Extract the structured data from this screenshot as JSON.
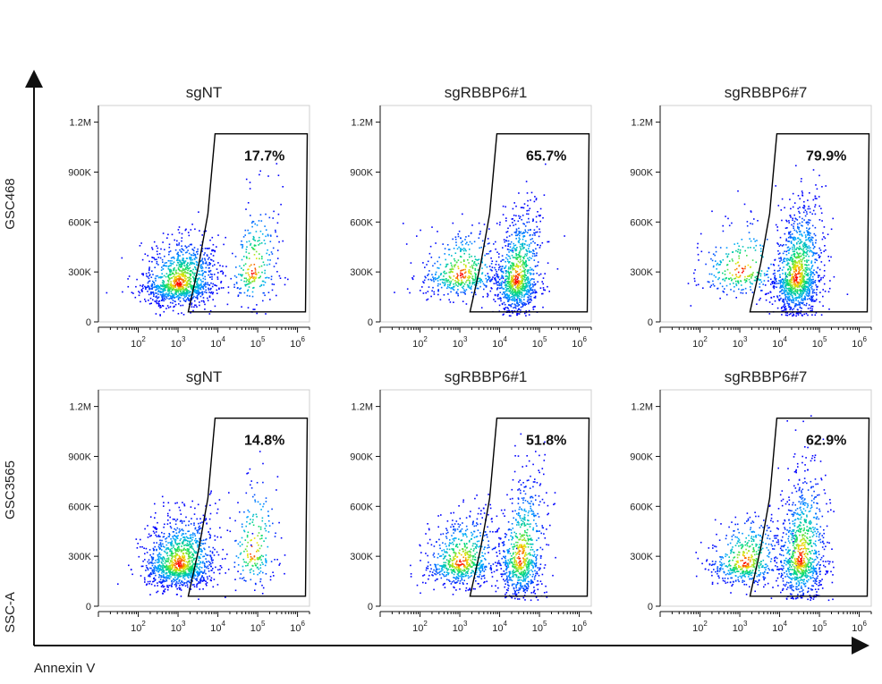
{
  "figure": {
    "row_labels": [
      "GSC468",
      "GSC3565"
    ],
    "y_axis_title": "SSC-A",
    "x_axis_title": "Annexin V"
  },
  "chart_data": [
    {
      "type": "scatter",
      "title": "sgNT",
      "row": "GSC468",
      "gate_percent": "17.7%",
      "apoptotic_fraction": 0.177,
      "xlabel": "Annexin V",
      "ylabel": "SSC-A",
      "xscale": "log",
      "xlim": [
        10,
        2000000
      ],
      "ylim": [
        0,
        1300000
      ],
      "x_ticks": [
        100,
        1000,
        10000,
        100000,
        1000000
      ],
      "x_tick_labels": [
        "10^2",
        "10^3",
        "10^4",
        "10^5",
        "10^6"
      ],
      "y_ticks": [
        0,
        300000,
        600000,
        900000,
        1200000
      ],
      "y_tick_labels": [
        "0",
        "300K",
        "600K",
        "900K",
        "1.2M"
      ],
      "populations": [
        {
          "x_center_log10": 3.0,
          "y_center": 230000,
          "x_spread_log10": 0.45,
          "y_spread": 110000,
          "weight": 0.82
        },
        {
          "x_center_log10": 4.85,
          "y_center": 300000,
          "x_spread_log10": 0.3,
          "y_spread": 180000,
          "weight": 0.18
        }
      ]
    },
    {
      "type": "scatter",
      "title": "sgRBBP6#1",
      "row": "GSC468",
      "gate_percent": "65.7%",
      "apoptotic_fraction": 0.657,
      "xlabel": "Annexin V",
      "ylabel": "SSC-A",
      "xscale": "log",
      "xlim": [
        10,
        2000000
      ],
      "ylim": [
        0,
        1300000
      ],
      "x_ticks": [
        100,
        1000,
        10000,
        100000,
        1000000
      ],
      "x_tick_labels": [
        "10^2",
        "10^3",
        "10^4",
        "10^5",
        "10^6"
      ],
      "y_ticks": [
        0,
        300000,
        600000,
        900000,
        1200000
      ],
      "y_tick_labels": [
        "0",
        "300K",
        "600K",
        "900K",
        "1.2M"
      ],
      "populations": [
        {
          "x_center_log10": 3.0,
          "y_center": 280000,
          "x_spread_log10": 0.5,
          "y_spread": 120000,
          "weight": 0.34
        },
        {
          "x_center_log10": 4.4,
          "y_center": 250000,
          "x_spread_log10": 0.28,
          "y_spread": 170000,
          "weight": 0.66
        }
      ]
    },
    {
      "type": "scatter",
      "title": "sgRBBP6#7",
      "row": "GSC468",
      "gate_percent": "79.9%",
      "apoptotic_fraction": 0.799,
      "xlabel": "Annexin V",
      "ylabel": "SSC-A",
      "xscale": "log",
      "xlim": [
        10,
        2000000
      ],
      "ylim": [
        0,
        1300000
      ],
      "x_ticks": [
        100,
        1000,
        10000,
        100000,
        1000000
      ],
      "x_tick_labels": [
        "10^2",
        "10^3",
        "10^4",
        "10^5",
        "10^6"
      ],
      "y_ticks": [
        0,
        300000,
        600000,
        900000,
        1200000
      ],
      "y_tick_labels": [
        "0",
        "300K",
        "600K",
        "900K",
        "1.2M"
      ],
      "populations": [
        {
          "x_center_log10": 3.0,
          "y_center": 300000,
          "x_spread_log10": 0.55,
          "y_spread": 130000,
          "weight": 0.2
        },
        {
          "x_center_log10": 4.4,
          "y_center": 260000,
          "x_spread_log10": 0.3,
          "y_spread": 180000,
          "weight": 0.8
        }
      ]
    },
    {
      "type": "scatter",
      "title": "sgNT",
      "row": "GSC3565",
      "gate_percent": "14.8%",
      "apoptotic_fraction": 0.148,
      "xlabel": "Annexin V",
      "ylabel": "SSC-A",
      "xscale": "log",
      "xlim": [
        10,
        2000000
      ],
      "ylim": [
        0,
        1300000
      ],
      "x_ticks": [
        100,
        1000,
        10000,
        100000,
        1000000
      ],
      "x_tick_labels": [
        "10^2",
        "10^3",
        "10^4",
        "10^5",
        "10^6"
      ],
      "y_ticks": [
        0,
        300000,
        600000,
        900000,
        1200000
      ],
      "y_tick_labels": [
        "0",
        "300K",
        "600K",
        "900K",
        "1.2M"
      ],
      "populations": [
        {
          "x_center_log10": 3.0,
          "y_center": 250000,
          "x_spread_log10": 0.45,
          "y_spread": 120000,
          "weight": 0.85
        },
        {
          "x_center_log10": 4.85,
          "y_center": 320000,
          "x_spread_log10": 0.3,
          "y_spread": 190000,
          "weight": 0.15
        }
      ]
    },
    {
      "type": "scatter",
      "title": "sgRBBP6#1",
      "row": "GSC3565",
      "gate_percent": "51.8%",
      "apoptotic_fraction": 0.518,
      "xlabel": "Annexin V",
      "ylabel": "SSC-A",
      "xscale": "log",
      "xlim": [
        10,
        2000000
      ],
      "ylim": [
        0,
        1300000
      ],
      "x_ticks": [
        100,
        1000,
        10000,
        100000,
        1000000
      ],
      "x_tick_labels": [
        "10^2",
        "10^3",
        "10^4",
        "10^5",
        "10^6"
      ],
      "y_ticks": [
        0,
        300000,
        600000,
        900000,
        1200000
      ],
      "y_tick_labels": [
        "0",
        "300K",
        "600K",
        "900K",
        "1.2M"
      ],
      "populations": [
        {
          "x_center_log10": 3.0,
          "y_center": 260000,
          "x_spread_log10": 0.45,
          "y_spread": 120000,
          "weight": 0.48
        },
        {
          "x_center_log10": 4.5,
          "y_center": 280000,
          "x_spread_log10": 0.28,
          "y_spread": 200000,
          "weight": 0.52
        }
      ]
    },
    {
      "type": "scatter",
      "title": "sgRBBP6#7",
      "row": "GSC3565",
      "gate_percent": "62.9%",
      "apoptotic_fraction": 0.629,
      "xlabel": "Annexin V",
      "ylabel": "SSC-A",
      "xscale": "log",
      "xlim": [
        10,
        2000000
      ],
      "ylim": [
        0,
        1300000
      ],
      "x_ticks": [
        100,
        1000,
        10000,
        100000,
        1000000
      ],
      "x_tick_labels": [
        "10^2",
        "10^3",
        "10^4",
        "10^5",
        "10^6"
      ],
      "y_ticks": [
        0,
        300000,
        600000,
        900000,
        1200000
      ],
      "y_tick_labels": [
        "0",
        "300K",
        "600K",
        "900K",
        "1.2M"
      ],
      "populations": [
        {
          "x_center_log10": 3.1,
          "y_center": 260000,
          "x_spread_log10": 0.45,
          "y_spread": 120000,
          "weight": 0.37
        },
        {
          "x_center_log10": 4.5,
          "y_center": 280000,
          "x_spread_log10": 0.3,
          "y_spread": 210000,
          "weight": 0.63
        }
      ]
    }
  ],
  "gate": {
    "x_min_log10": 3.75,
    "x_max_log10": 6.2,
    "y_min": 60000,
    "y_max": 1130000,
    "color": "#000000"
  },
  "colors": {
    "density_low": "#0000ff",
    "density_mid": "#00e070",
    "density_high": "#ff0000",
    "axis": "#111111"
  }
}
